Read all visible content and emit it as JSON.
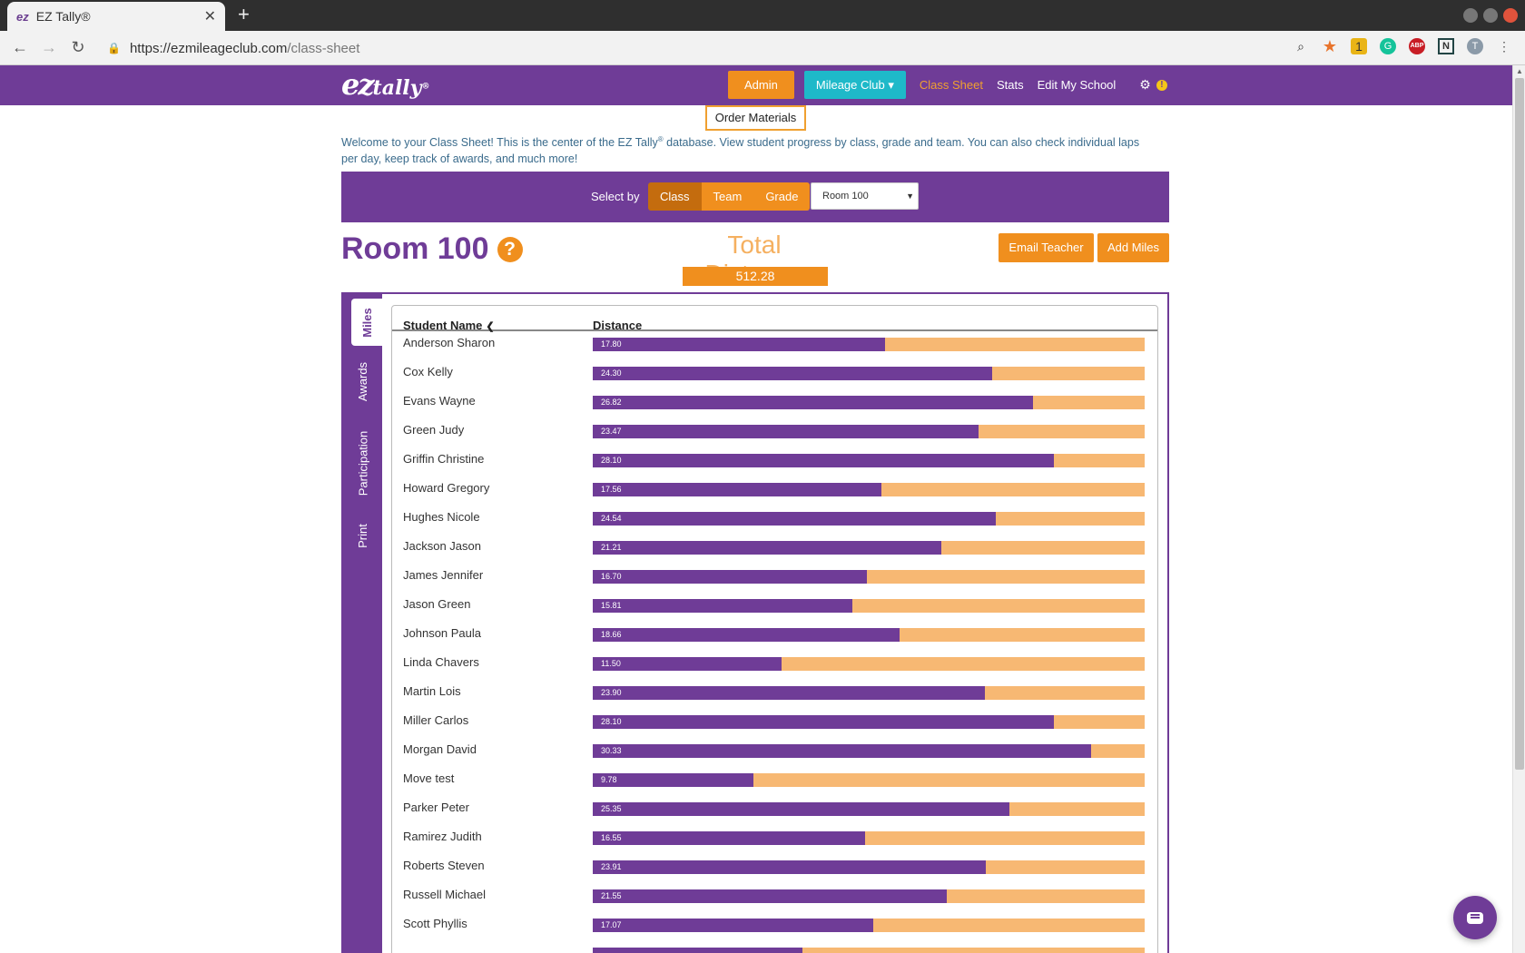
{
  "browser": {
    "tab_title": "EZ Tally®",
    "tab_favicon": "ez",
    "new_tab": "+",
    "url_host": "https://ezmileageclub.com",
    "url_path": "/class-sheet",
    "extension_y_badge": "1"
  },
  "header": {
    "logo_ez": "ez",
    "logo_tally": "tally",
    "logo_reg": "®",
    "admin": "Admin",
    "mileage_club": "Mileage Club ▾",
    "class_sheet": "Class Sheet",
    "stats": "Stats",
    "edit_school": "Edit My School",
    "alert": "!"
  },
  "dropdown": {
    "order_materials": "Order Materials"
  },
  "welcome": {
    "part1": "Welcome to your Class Sheet! This is the center of the EZ Tally",
    "reg": "®",
    "part2": " database. View student progress by class, grade and team. You can also check individual laps per day, keep track of awards, and much more!"
  },
  "selector": {
    "label": "Select by",
    "options": [
      "Class",
      "Team",
      "Grade"
    ],
    "active": "Class",
    "room": "Room 100"
  },
  "room": {
    "title": "Room 100",
    "help": "?"
  },
  "total": {
    "label": "Total Distance",
    "value": "512.28"
  },
  "actions": {
    "email_teacher": "Email Teacher",
    "add_miles": "Add Miles"
  },
  "side_tabs": [
    "Miles",
    "Awards",
    "Participation",
    "Print"
  ],
  "table": {
    "col_name": "Student Name",
    "col_distance": "Distance",
    "max_scale": 33.6,
    "rows": [
      {
        "name": "Anderson Sharon",
        "distance": "17.80"
      },
      {
        "name": "Cox Kelly",
        "distance": "24.30"
      },
      {
        "name": "Evans Wayne",
        "distance": "26.82"
      },
      {
        "name": "Green Judy",
        "distance": "23.47"
      },
      {
        "name": "Griffin Christine",
        "distance": "28.10"
      },
      {
        "name": "Howard Gregory",
        "distance": "17.56"
      },
      {
        "name": "Hughes Nicole",
        "distance": "24.54"
      },
      {
        "name": "Jackson Jason",
        "distance": "21.21"
      },
      {
        "name": "James Jennifer",
        "distance": "16.70"
      },
      {
        "name": "Jason Green",
        "distance": "15.81"
      },
      {
        "name": "Johnson Paula",
        "distance": "18.66"
      },
      {
        "name": "Linda Chavers",
        "distance": "11.50"
      },
      {
        "name": "Martin Lois",
        "distance": "23.90"
      },
      {
        "name": "Miller Carlos",
        "distance": "28.10"
      },
      {
        "name": "Morgan David",
        "distance": "30.33"
      },
      {
        "name": "Move test",
        "distance": "9.78"
      },
      {
        "name": "Parker Peter",
        "distance": "25.35"
      },
      {
        "name": "Ramirez Judith",
        "distance": "16.55"
      },
      {
        "name": "Roberts Steven",
        "distance": "23.91"
      },
      {
        "name": "Russell Michael",
        "distance": "21.55"
      },
      {
        "name": "Scott Phyllis",
        "distance": "17.07"
      }
    ],
    "partial_row_fill": 0.38
  },
  "colors": {
    "purple": "#6f3c97",
    "orange": "#f08f1e",
    "bar_bg": "#f7b873",
    "teal": "#1eb9c9"
  }
}
